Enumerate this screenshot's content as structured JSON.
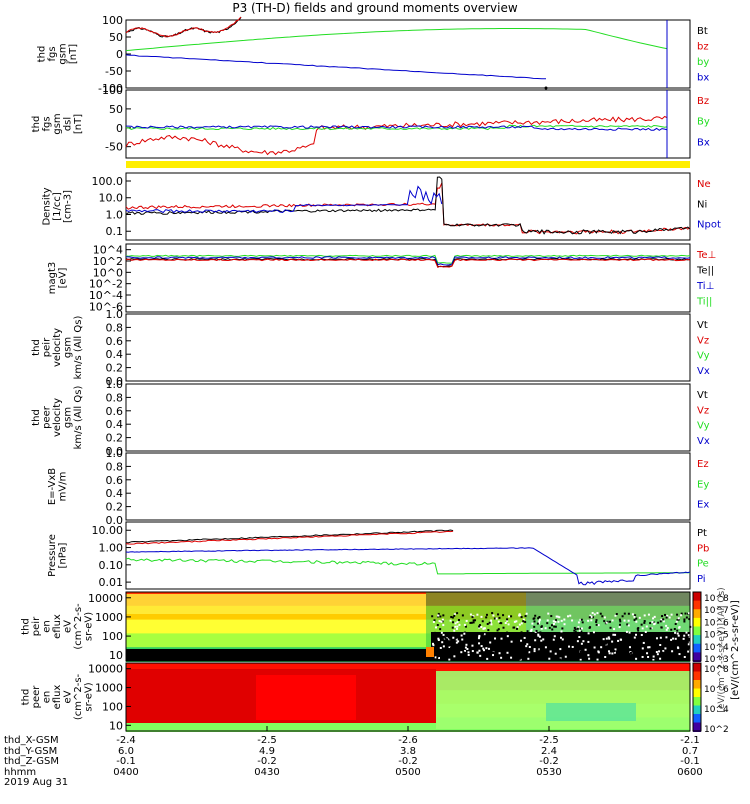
{
  "title": "P3 (TH-D) fields and ground moments overview",
  "colors": {
    "black": "#000000",
    "red": "#dd0000",
    "green": "#22dd22",
    "blue": "#0000cc",
    "yellow": "#ffee00"
  },
  "panels": [
    {
      "id": "fgs_gsm",
      "ylabel": [
        "thd",
        "fgs",
        "gsm",
        "[nT]"
      ],
      "ytick_labels": [
        "100",
        "50",
        "0",
        "-50",
        "-100"
      ],
      "ytick_values": [
        100,
        50,
        0,
        -50,
        -100
      ],
      "ylim": [
        -100,
        100
      ],
      "legend": [
        {
          "text": "Bt",
          "color": "black"
        },
        {
          "text": "bz",
          "color": "red"
        },
        {
          "text": "by",
          "color": "green"
        },
        {
          "text": "bx",
          "color": "blue"
        }
      ]
    },
    {
      "id": "fgs_dsl",
      "ylabel": [
        "thd",
        "fgs",
        "gsm",
        "dsl",
        "[nT]"
      ],
      "ytick_labels": [
        "100",
        "50",
        "0",
        "-50"
      ],
      "ytick_values": [
        100,
        50,
        0,
        -50
      ],
      "ylim": [
        -80,
        100
      ],
      "legend": [
        {
          "text": "Bz",
          "color": "red"
        },
        {
          "text": "By",
          "color": "green"
        },
        {
          "text": "Bx",
          "color": "blue"
        }
      ]
    },
    {
      "id": "density",
      "ylabel": [
        "Density",
        "[1/cc]",
        "[cm-3]"
      ],
      "ytick_labels": [
        "100.0",
        "10.0",
        "1.0",
        "0.1"
      ],
      "ytick_values": [
        100,
        10,
        1,
        0.1
      ],
      "ylim": [
        0.03,
        300
      ],
      "log": true,
      "legend": [
        {
          "text": "Ne",
          "color": "red"
        },
        {
          "text": "Ni",
          "color": "black"
        },
        {
          "text": "Npot",
          "color": "blue"
        }
      ]
    },
    {
      "id": "temperature",
      "ylabel": [
        "magt3",
        "[eV]"
      ],
      "ytick_labels": [
        "10^4",
        "10^2",
        "10^0",
        "10^-2",
        "10^-4",
        "10^-6"
      ],
      "ytick_values": [
        4,
        2,
        0,
        -2,
        -4,
        -6
      ],
      "ylim": [
        -7,
        5
      ],
      "legend": [
        {
          "text": "Te⊥",
          "color": "red"
        },
        {
          "text": "Te||",
          "color": "black"
        },
        {
          "text": "Ti⊥",
          "color": "blue"
        },
        {
          "text": "Ti||",
          "color": "green"
        }
      ]
    },
    {
      "id": "peir_vel",
      "ylabel": [
        "thd",
        "peir",
        "velocity",
        "gsm",
        "km/s (All Qs)"
      ],
      "ytick_labels": [
        "1.0",
        "0.8",
        "0.6",
        "0.4",
        "0.2",
        "0.0"
      ],
      "ytick_values": [
        1,
        0.8,
        0.6,
        0.4,
        0.2,
        0
      ],
      "ylim": [
        0,
        1
      ],
      "legend": [
        {
          "text": "Vt",
          "color": "black"
        },
        {
          "text": "Vz",
          "color": "red"
        },
        {
          "text": "Vy",
          "color": "green"
        },
        {
          "text": "Vx",
          "color": "blue"
        }
      ]
    },
    {
      "id": "peer_vel",
      "ylabel": [
        "thd",
        "peer",
        "velocity",
        "gsm",
        "km/s (All Qs)"
      ],
      "ytick_labels": [
        "1.0",
        "0.8",
        "0.6",
        "0.4",
        "0.2",
        "0.0"
      ],
      "ytick_values": [
        1,
        0.8,
        0.6,
        0.4,
        0.2,
        0
      ],
      "ylim": [
        0,
        1
      ],
      "legend": [
        {
          "text": "Vt",
          "color": "black"
        },
        {
          "text": "Vz",
          "color": "red"
        },
        {
          "text": "Vy",
          "color": "green"
        },
        {
          "text": "Vx",
          "color": "blue"
        }
      ]
    },
    {
      "id": "efield",
      "ylabel": [
        "E=-VxB",
        "mV/m"
      ],
      "ytick_labels": [
        "1.0",
        "0.8",
        "0.6",
        "0.4",
        "0.2",
        "0.0"
      ],
      "ytick_values": [
        1,
        0.8,
        0.6,
        0.4,
        0.2,
        0
      ],
      "ylim": [
        0,
        1
      ],
      "legend": [
        {
          "text": "Ez",
          "color": "red"
        },
        {
          "text": "Ey",
          "color": "green"
        },
        {
          "text": "Ex",
          "color": "blue"
        }
      ]
    },
    {
      "id": "pressure",
      "ylabel": [
        "Pressure",
        "[nPa]"
      ],
      "ytick_labels": [
        "10.00",
        "1.00",
        "0.10",
        "0.01"
      ],
      "ytick_values": [
        10,
        1,
        0.1,
        0.01
      ],
      "ylim": [
        0.004,
        30
      ],
      "log": true,
      "legend": [
        {
          "text": "Pt",
          "color": "black"
        },
        {
          "text": "Pb",
          "color": "red"
        },
        {
          "text": "Pe",
          "color": "green"
        },
        {
          "text": "Pi",
          "color": "blue"
        }
      ]
    },
    {
      "id": "peir_eflux",
      "ylabel": [
        "thd",
        "peir",
        "en",
        "eflux",
        "eV",
        "(cm^2-s-",
        "sr-eV)"
      ],
      "ytick_labels": [
        "10000",
        "1000",
        "100",
        "10"
      ],
      "ytick_values": [
        10000,
        1000,
        100,
        10
      ],
      "ylim": [
        5,
        20000
      ],
      "log": true,
      "colorbar": [
        "10^8",
        "10^7",
        "10^6",
        "10^5",
        "10^4",
        "10^3"
      ]
    },
    {
      "id": "peer_eflux",
      "ylabel": [
        "thd",
        "peer",
        "en",
        "eflux",
        "eV",
        "(cm^2-s-",
        "sr-eV)"
      ],
      "ytick_labels": [
        "10000",
        "1000",
        "100",
        "10"
      ],
      "ytick_values": [
        10000,
        1000,
        100,
        10
      ],
      "ylim": [
        5,
        20000
      ],
      "log": true,
      "colorbar": [
        "10^8",
        "10^6",
        "10^4",
        "10^2"
      ]
    }
  ],
  "colorbar_label": "[eV/(cm^2-s-sr-eV)]",
  "colorbar_label_2": "[eV/(cm^2-s-sr-eV)] (All Qs)",
  "footer": {
    "rows": [
      {
        "label": "thd_X-GSM",
        "values": [
          "-2.4",
          "-2.5",
          "-2.6",
          "-2.5",
          "-2.1"
        ]
      },
      {
        "label": "thd_Y-GSM",
        "values": [
          "6.0",
          "4.9",
          "3.8",
          "2.4",
          "0.7"
        ]
      },
      {
        "label": "thd_Z-GSM",
        "values": [
          "-0.1",
          "-0.2",
          "-0.2",
          "-0.2",
          "-0.1"
        ]
      },
      {
        "label": "hhmm",
        "values": [
          "0400",
          "0430",
          "0500",
          "0530",
          "0600"
        ]
      }
    ],
    "date": "2019 Aug 31"
  },
  "chart_data": {
    "type": "line",
    "title": "P3 (TH-D) fields and ground moments overview",
    "x": [
      "0400",
      "0430",
      "0500",
      "0530",
      "0600"
    ],
    "series": [
      {
        "name": "Bt",
        "values": [
          65,
          55,
          100,
          null,
          null
        ]
      },
      {
        "name": "by",
        "values": [
          12,
          30,
          55,
          75,
          20
        ]
      },
      {
        "name": "bx",
        "values": [
          0,
          -35,
          -70,
          null,
          null
        ]
      },
      {
        "name": "Bz",
        "values": [
          -50,
          -60,
          -10,
          0,
          20
        ]
      },
      {
        "name": "Ne",
        "values": [
          2,
          2.5,
          2,
          0.1,
          0.15
        ]
      },
      {
        "name": "Ni",
        "values": [
          1,
          1.5,
          2,
          0.08,
          0.15
        ]
      },
      {
        "name": "Pt",
        "values": [
          2.0,
          3.5,
          7.0,
          null,
          null
        ]
      },
      {
        "name": "Pe",
        "values": [
          0.2,
          0.2,
          0.05,
          0.03,
          0.04
        ]
      },
      {
        "name": "Pi",
        "values": [
          0.6,
          0.7,
          1.0,
          0.01,
          0.04
        ]
      }
    ],
    "xlabel": "hhmm",
    "ylabel": ""
  }
}
